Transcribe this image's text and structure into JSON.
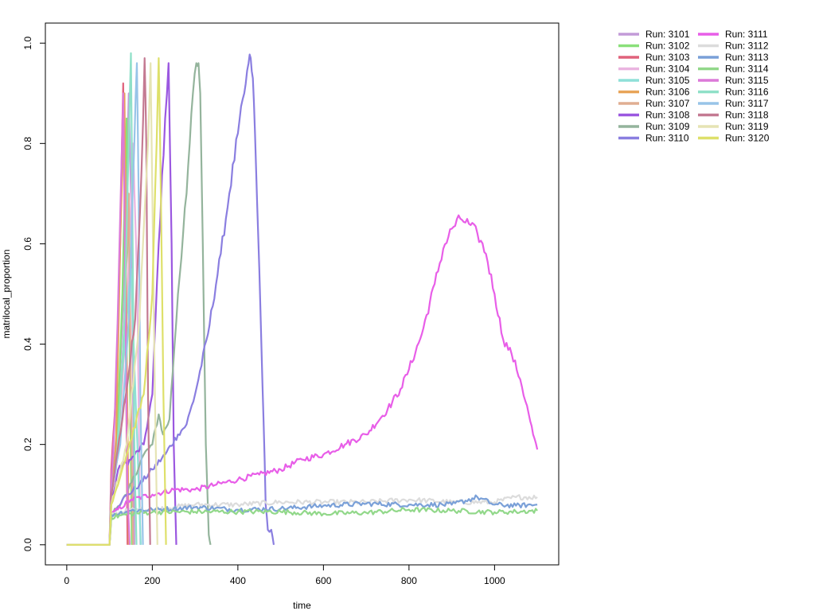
{
  "chart_data": {
    "type": "line",
    "title": "",
    "xlabel": "time",
    "ylabel": "matrilocal_proportion",
    "xlim": [
      -50,
      1150
    ],
    "ylim": [
      -0.04,
      1.04
    ],
    "xticks": [
      0,
      200,
      400,
      600,
      800,
      1000
    ],
    "yticks": [
      0.0,
      0.2,
      0.4,
      0.6,
      0.8,
      1.0
    ],
    "xtick_labels": [
      "0",
      "200",
      "400",
      "600",
      "800",
      "1000"
    ],
    "ytick_labels": [
      "0.0",
      "0.2",
      "0.4",
      "0.6",
      "0.8",
      "1.0"
    ],
    "grid": false,
    "legend_position": "outside-top-right",
    "legend_columns": 2,
    "series": [
      {
        "name": "Run: 3101",
        "color": "#c39bd8",
        "x": [
          0,
          100,
          105,
          120,
          135,
          145,
          152,
          158
        ],
        "y": [
          0,
          0,
          0.12,
          0.25,
          0.55,
          0.9,
          0.6,
          0
        ]
      },
      {
        "name": "Run: 3102",
        "color": "#8ae07a",
        "x": [
          0,
          100,
          104,
          118,
          130,
          140,
          147,
          152
        ],
        "y": [
          0,
          0,
          0.1,
          0.22,
          0.5,
          0.85,
          0.4,
          0
        ]
      },
      {
        "name": "Run: 3103",
        "color": "#e0627c",
        "x": [
          0,
          100,
          104,
          115,
          125,
          132,
          137,
          142
        ],
        "y": [
          0,
          0,
          0.15,
          0.3,
          0.6,
          0.92,
          0.5,
          0
        ]
      },
      {
        "name": "Run: 3104",
        "color": "#eab4e0",
        "x": [
          0,
          100,
          104,
          120,
          140,
          155,
          165,
          172
        ],
        "y": [
          0,
          0,
          0.1,
          0.2,
          0.45,
          0.8,
          0.5,
          0
        ]
      },
      {
        "name": "Run: 3105",
        "color": "#8fe0d8",
        "x": [
          0,
          100,
          104,
          115,
          130,
          150,
          165,
          173
        ],
        "y": [
          0,
          0,
          0.1,
          0.15,
          0.35,
          0.55,
          0.2,
          0
        ]
      },
      {
        "name": "Run: 3106",
        "color": "#e8a458",
        "x": [
          0,
          100,
          104,
          115,
          125,
          135,
          140,
          145
        ],
        "y": [
          0,
          0,
          0.1,
          0.2,
          0.6,
          0.9,
          0.4,
          0
        ]
      },
      {
        "name": "Run: 3107",
        "color": "#e0ae92",
        "x": [
          0,
          100,
          104,
          120,
          135,
          145,
          150,
          155
        ],
        "y": [
          0,
          0,
          0.1,
          0.18,
          0.45,
          0.7,
          0.3,
          0
        ]
      },
      {
        "name": "Run: 3108",
        "color": "#9b58e0",
        "x": [
          0,
          100,
          104,
          120,
          150,
          180,
          200,
          215,
          230,
          238,
          245,
          250,
          256
        ],
        "y": [
          0,
          0,
          0.08,
          0.15,
          0.17,
          0.2,
          0.3,
          0.6,
          0.85,
          0.96,
          0.6,
          0.2,
          0
        ]
      },
      {
        "name": "Run: 3109",
        "color": "#94b49c",
        "x": [
          0,
          100,
          104,
          140,
          180,
          200,
          215,
          225,
          240,
          260,
          280,
          295,
          303,
          308,
          312,
          318,
          325,
          332,
          336
        ],
        "y": [
          0,
          0,
          0.06,
          0.1,
          0.18,
          0.2,
          0.26,
          0.22,
          0.25,
          0.5,
          0.7,
          0.9,
          0.96,
          0.96,
          0.9,
          0.6,
          0.2,
          0.02,
          0
        ]
      },
      {
        "name": "Run: 3110",
        "color": "#8a7ee0",
        "x": [
          0,
          100,
          104,
          130,
          170,
          200,
          230,
          260,
          280,
          300,
          330,
          360,
          380,
          400,
          415,
          425,
          430,
          435,
          440,
          445,
          450,
          455,
          460,
          465,
          470,
          478,
          484
        ],
        "y": [
          0,
          0,
          0.06,
          0.09,
          0.12,
          0.15,
          0.18,
          0.22,
          0.24,
          0.3,
          0.42,
          0.58,
          0.7,
          0.82,
          0.9,
          0.96,
          0.97,
          0.93,
          0.82,
          0.68,
          0.55,
          0.4,
          0.25,
          0.08,
          0.03,
          0.03,
          0
        ]
      },
      {
        "name": "Run: 3111",
        "color": "#e85ee8",
        "x": [
          0,
          100,
          104,
          150,
          200,
          250,
          300,
          350,
          400,
          450,
          500,
          550,
          600,
          650,
          700,
          750,
          780,
          800,
          830,
          860,
          880,
          900,
          920,
          940,
          960,
          980,
          1000,
          1020,
          1040,
          1060,
          1080,
          1090,
          1100
        ],
        "y": [
          0,
          0,
          0.06,
          0.09,
          0.1,
          0.11,
          0.11,
          0.12,
          0.13,
          0.14,
          0.15,
          0.17,
          0.18,
          0.2,
          0.22,
          0.27,
          0.31,
          0.35,
          0.42,
          0.52,
          0.59,
          0.63,
          0.65,
          0.64,
          0.62,
          0.58,
          0.5,
          0.41,
          0.38,
          0.33,
          0.26,
          0.22,
          0.19
        ]
      },
      {
        "name": "Run: 3112",
        "color": "#dcdcdc",
        "x": [
          0,
          100,
          104,
          150,
          200,
          250,
          300,
          400,
          500,
          600,
          700,
          800,
          900,
          1000,
          1050,
          1100
        ],
        "y": [
          0,
          0,
          0.06,
          0.07,
          0.07,
          0.075,
          0.08,
          0.08,
          0.085,
          0.085,
          0.085,
          0.09,
          0.085,
          0.085,
          0.095,
          0.095
        ]
      },
      {
        "name": "Run: 3113",
        "color": "#7aa0d8",
        "x": [
          0,
          100,
          104,
          150,
          200,
          250,
          300,
          400,
          500,
          600,
          700,
          800,
          900,
          960,
          1000,
          1050,
          1100
        ],
        "y": [
          0,
          0,
          0.06,
          0.068,
          0.07,
          0.072,
          0.075,
          0.07,
          0.072,
          0.078,
          0.082,
          0.08,
          0.08,
          0.095,
          0.08,
          0.078,
          0.08
        ]
      },
      {
        "name": "Run: 3114",
        "color": "#92d88a",
        "x": [
          0,
          100,
          104,
          150,
          200,
          300,
          400,
          500,
          600,
          700,
          800,
          900,
          1000,
          1050,
          1100
        ],
        "y": [
          0,
          0,
          0.055,
          0.062,
          0.065,
          0.066,
          0.066,
          0.066,
          0.062,
          0.064,
          0.07,
          0.068,
          0.065,
          0.066,
          0.068
        ]
      },
      {
        "name": "Run: 3115",
        "color": "#dc7ad8",
        "x": [
          0,
          100,
          104,
          112,
          122,
          132,
          137,
          142,
          147
        ],
        "y": [
          0,
          0,
          0.12,
          0.25,
          0.55,
          0.9,
          0.5,
          0.1,
          0
        ]
      },
      {
        "name": "Run: 3116",
        "color": "#8fe0c8",
        "x": [
          0,
          100,
          104,
          120,
          135,
          145,
          150,
          154,
          158,
          163
        ],
        "y": [
          0,
          0,
          0.1,
          0.2,
          0.45,
          0.8,
          0.98,
          0.6,
          0.2,
          0
        ]
      },
      {
        "name": "Run: 3117",
        "color": "#98c4e8",
        "x": [
          0,
          100,
          104,
          125,
          145,
          158,
          164,
          168,
          172,
          178
        ],
        "y": [
          0,
          0,
          0.1,
          0.2,
          0.45,
          0.8,
          0.96,
          0.7,
          0.3,
          0
        ]
      },
      {
        "name": "Run: 3118",
        "color": "#c47a92",
        "x": [
          0,
          100,
          104,
          130,
          160,
          175,
          182,
          186,
          190,
          195
        ],
        "y": [
          0,
          0,
          0.1,
          0.25,
          0.45,
          0.75,
          0.97,
          0.8,
          0.3,
          0
        ]
      },
      {
        "name": "Run: 3119",
        "color": "#e6e4b4",
        "x": [
          0,
          100,
          104,
          140,
          170,
          190,
          196,
          200,
          206,
          212
        ],
        "y": [
          0,
          0,
          0.08,
          0.2,
          0.45,
          0.8,
          0.96,
          0.7,
          0.3,
          0
        ]
      },
      {
        "name": "Run: 3120",
        "color": "#dee06a",
        "x": [
          0,
          100,
          104,
          140,
          180,
          200,
          210,
          215,
          220,
          226,
          232
        ],
        "y": [
          0,
          0,
          0.08,
          0.18,
          0.3,
          0.5,
          0.8,
          0.97,
          0.7,
          0.3,
          0
        ]
      }
    ]
  }
}
